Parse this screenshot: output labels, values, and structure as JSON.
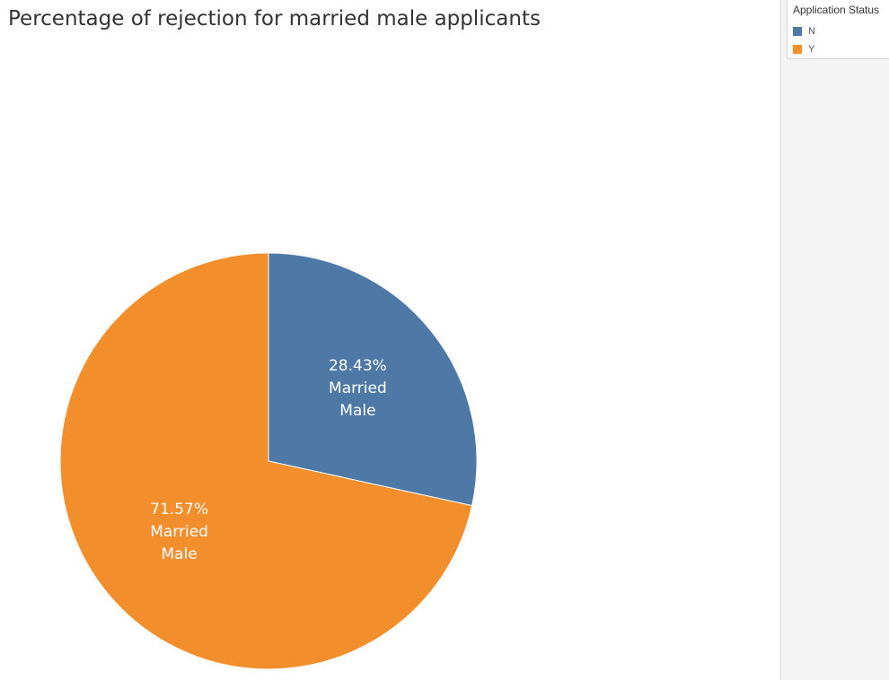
{
  "chart_data": {
    "type": "pie",
    "title": "Percentage of rejection for married male applicants",
    "legend": {
      "title": "Application Status",
      "placement": "top-right",
      "entries": [
        "N",
        "Y"
      ]
    },
    "slices": [
      {
        "category": "N",
        "value": 28.43,
        "label": "28.43%",
        "label_lines": [
          "Married",
          "Male"
        ],
        "color": "#4e79a7"
      },
      {
        "category": "Y",
        "value": 71.57,
        "label": "71.57%",
        "label_lines": [
          "Married",
          "Male"
        ],
        "color": "#f28e2b"
      }
    ]
  }
}
